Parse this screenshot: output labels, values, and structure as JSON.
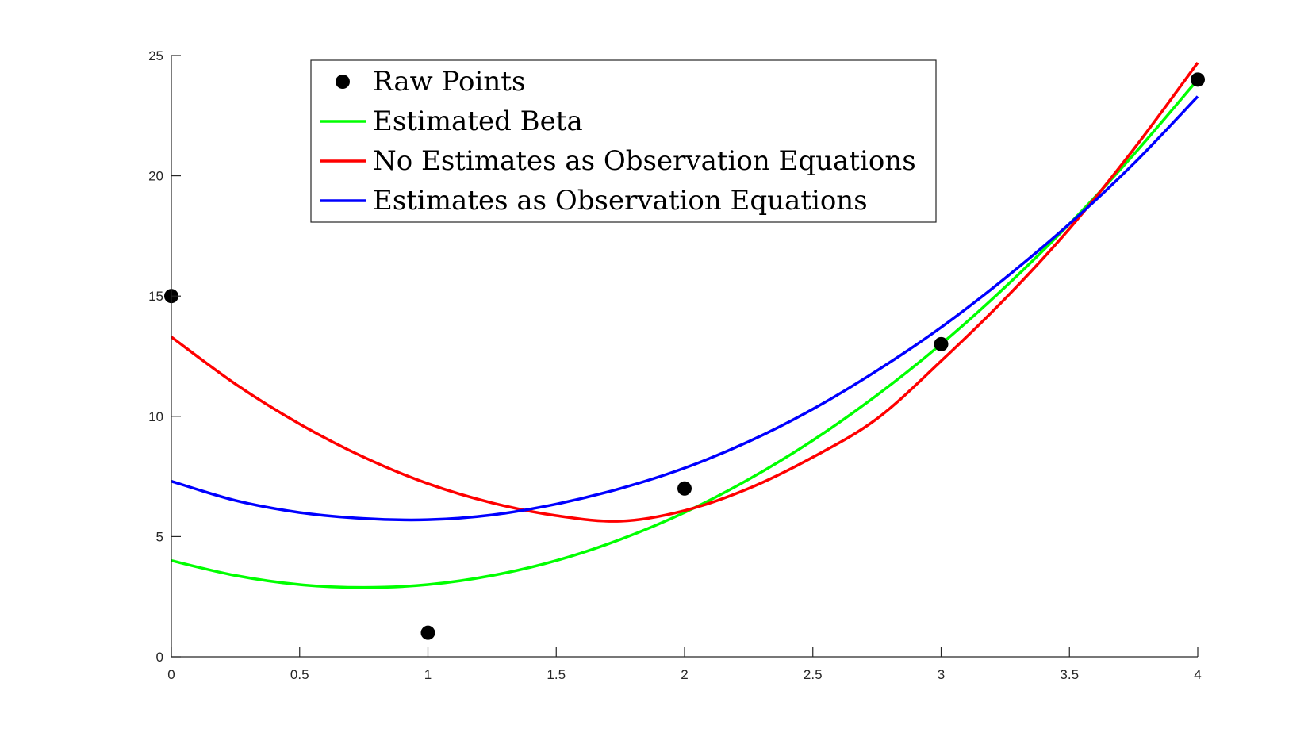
{
  "chart_data": {
    "type": "line",
    "title": "",
    "xlabel": "",
    "ylabel": "",
    "xlim": [
      0,
      4
    ],
    "ylim": [
      0,
      25
    ],
    "grid": false,
    "legend_position": "top-left",
    "x_ticks": [
      "0",
      "0.5",
      "1",
      "1.5",
      "2",
      "2.5",
      "3",
      "3.5",
      "4"
    ],
    "y_ticks": [
      "0",
      "5",
      "10",
      "15",
      "20",
      "25"
    ],
    "raw_points": {
      "name": "Raw Points",
      "color": "#000000",
      "x": [
        0,
        1,
        2,
        3,
        4
      ],
      "y": [
        15,
        1,
        7,
        13,
        24
      ]
    },
    "series": [
      {
        "name": "Estimated Beta",
        "color": "#00ff00",
        "x": [
          0,
          0.25,
          0.5,
          0.75,
          1,
          1.25,
          1.5,
          1.75,
          2,
          2.25,
          2.5,
          2.75,
          3,
          3.25,
          3.5,
          3.75,
          4
        ],
        "y": [
          4.0,
          3.38,
          3.0,
          2.88,
          3.0,
          3.38,
          4.0,
          4.88,
          6.0,
          7.38,
          9.0,
          10.88,
          13.0,
          15.38,
          18.0,
          20.88,
          24.0
        ]
      },
      {
        "name": "No Estimates as Observation Equations",
        "color": "#ff0000",
        "x": [
          0,
          0.25,
          0.5,
          0.75,
          1,
          1.25,
          1.5,
          1.75,
          2,
          2.25,
          2.5,
          2.75,
          3,
          3.25,
          3.5,
          3.75,
          4
        ],
        "y": [
          13.3,
          11.34,
          9.68,
          8.3,
          7.2,
          6.4,
          5.87,
          5.64,
          6.08,
          7.0,
          8.3,
          9.9,
          12.3,
          14.9,
          17.8,
          21.1,
          24.7
        ]
      },
      {
        "name": "Estimates as Observation Equations",
        "color": "#0000ff",
        "x": [
          0,
          0.25,
          0.5,
          0.75,
          1,
          1.25,
          1.5,
          1.75,
          2,
          2.25,
          2.5,
          2.75,
          3,
          3.25,
          3.5,
          3.75,
          4
        ],
        "y": [
          7.3,
          6.5,
          6.0,
          5.75,
          5.7,
          5.9,
          6.35,
          7.0,
          7.85,
          8.95,
          10.3,
          11.9,
          13.7,
          15.75,
          18.0,
          20.5,
          23.3
        ]
      }
    ]
  }
}
